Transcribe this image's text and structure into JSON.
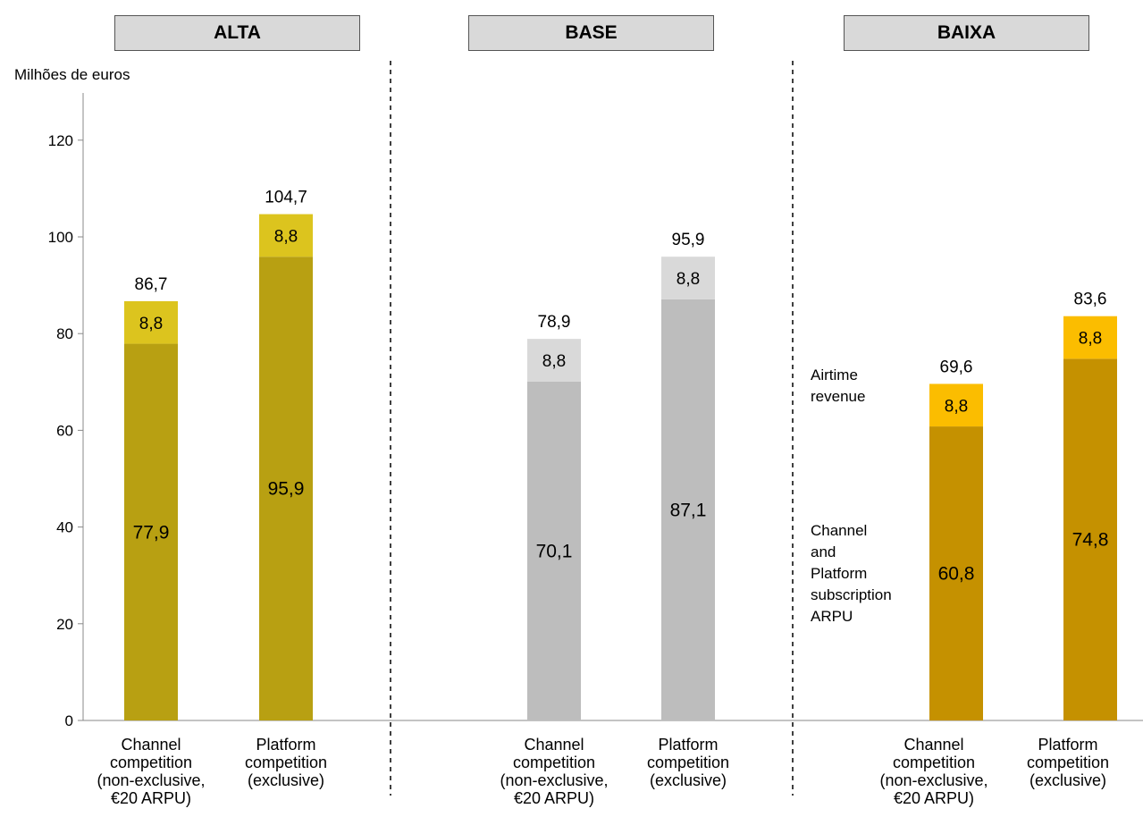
{
  "unit_label": "Milhões de euros",
  "colors": {
    "alta": {
      "base": "#b8a012",
      "top": "#dcc41e"
    },
    "base": {
      "base": "#bdbdbd",
      "top": "#d9d9d9"
    },
    "baixa": {
      "base": "#c59100",
      "top": "#fbbd00"
    },
    "box_fill": "#d9d9d9",
    "axis": "#888888"
  },
  "side_labels": {
    "airtime": [
      "Airtime",
      "revenue"
    ],
    "subscription": [
      "Channel",
      "and",
      "Platform",
      "subscription",
      "ARPU"
    ]
  },
  "chart_data": {
    "type": "bar",
    "stacked": true,
    "ylabel": "Milhões de euros",
    "ylim": [
      0,
      130
    ],
    "yticks": [
      0,
      20,
      40,
      60,
      80,
      100,
      120
    ],
    "grid": false,
    "groups": [
      {
        "name": "ALTA",
        "categories": [
          "Channel competition (non-exclusive, €20 ARPU)",
          "Platform competition (exclusive)"
        ],
        "category_lines": [
          [
            "Channel",
            "competition",
            "(non-exclusive,",
            "€20 ARPU)"
          ],
          [
            "Platform",
            "competition",
            "(exclusive)"
          ]
        ],
        "subscription": [
          77.9,
          95.9
        ],
        "airtime": [
          8.8,
          8.8
        ],
        "totals": [
          86.7,
          104.7
        ],
        "labels": {
          "subscription": [
            "77,9",
            "95,9"
          ],
          "airtime": [
            "8,8",
            "8,8"
          ],
          "totals": [
            "86,7",
            "104,7"
          ]
        }
      },
      {
        "name": "BASE",
        "categories": [
          "Channel competition (non-exclusive, €20 ARPU)",
          "Platform competition (exclusive)"
        ],
        "category_lines": [
          [
            "Channel",
            "competition",
            "(non-exclusive,",
            "€20 ARPU)"
          ],
          [
            "Platform",
            "competition",
            "(exclusive)"
          ]
        ],
        "subscription": [
          70.1,
          87.1
        ],
        "airtime": [
          8.8,
          8.8
        ],
        "totals": [
          78.9,
          95.9
        ],
        "labels": {
          "subscription": [
            "70,1",
            "87,1"
          ],
          "airtime": [
            "8,8",
            "8,8"
          ],
          "totals": [
            "78,9",
            "95,9"
          ]
        }
      },
      {
        "name": "BAIXA",
        "categories": [
          "Channel competition (non-exclusive, €20 ARPU)",
          "Platform competition (exclusive)"
        ],
        "category_lines": [
          [
            "Channel",
            "competition",
            "(non-exclusive,",
            "€20 ARPU)"
          ],
          [
            "Platform",
            "competition",
            "(exclusive)"
          ]
        ],
        "subscription": [
          60.8,
          74.8
        ],
        "airtime": [
          8.8,
          8.8
        ],
        "totals": [
          69.6,
          83.6
        ],
        "labels": {
          "subscription": [
            "60,8",
            "74,8"
          ],
          "airtime": [
            "8,8",
            "8,8"
          ],
          "totals": [
            "69,6",
            "83,6"
          ]
        }
      }
    ]
  }
}
